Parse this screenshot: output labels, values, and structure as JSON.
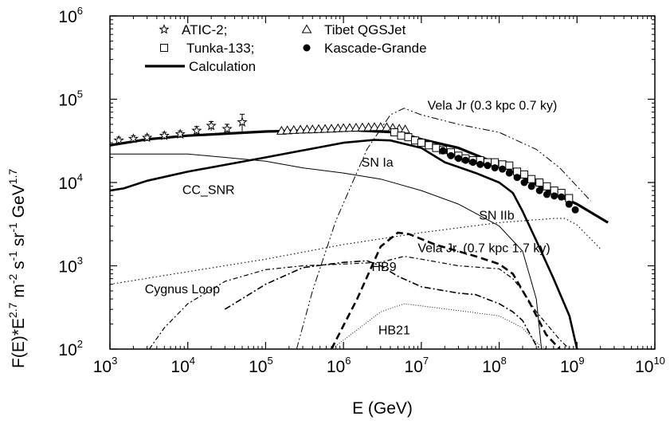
{
  "chart_data": {
    "type": "line",
    "xscale": "log",
    "yscale": "log",
    "xlim": [
      1000,
      10000000000
    ],
    "ylim": [
      100,
      1000000
    ],
    "xlabel": "E (GeV)",
    "ylabel": "F(E)*E^{2.7} m^{-2} s^{-1} sr^{-1} GeV^{1.7}",
    "ylabel_parts": [
      {
        "t": "F(E)*E",
        "sup": false
      },
      {
        "t": "2.7",
        "sup": true
      },
      {
        "t": " m",
        "sup": false
      },
      {
        "t": "-2",
        "sup": true
      },
      {
        "t": " s",
        "sup": false
      },
      {
        "t": "-1",
        "sup": true
      },
      {
        "t": " sr",
        "sup": false
      },
      {
        "t": "-1",
        "sup": true
      },
      {
        "t": " GeV",
        "sup": false
      },
      {
        "t": "1.7",
        "sup": true
      }
    ],
    "grid": false,
    "xticks": [
      {
        "base": "10",
        "exp": "3",
        "value": 1000
      },
      {
        "base": "10",
        "exp": "4",
        "value": 10000
      },
      {
        "base": "10",
        "exp": "5",
        "value": 100000
      },
      {
        "base": "10",
        "exp": "6",
        "value": 1000000
      },
      {
        "base": "10",
        "exp": "7",
        "value": 10000000
      },
      {
        "base": "10",
        "exp": "8",
        "value": 100000000
      },
      {
        "base": "10",
        "exp": "9",
        "value": 1000000000
      },
      {
        "base": "10",
        "exp": "10",
        "value": 10000000000
      }
    ],
    "yticks": [
      {
        "base": "10",
        "exp": "2",
        "value": 100
      },
      {
        "base": "10",
        "exp": "3",
        "value": 1000
      },
      {
        "base": "10",
        "exp": "4",
        "value": 10000
      },
      {
        "base": "10",
        "exp": "5",
        "value": 100000
      },
      {
        "base": "10",
        "exp": "6",
        "value": 1000000
      }
    ],
    "legend": {
      "placement": "top-left",
      "entries": [
        {
          "label": "ATIC-2;",
          "marker": "star"
        },
        {
          "label": "Tibet QGSJet",
          "marker": "triangle"
        },
        {
          "label": "Tunka-133;",
          "marker": "square"
        },
        {
          "label": "Kascade-Grande",
          "marker": "circle"
        },
        {
          "label": "Calculation",
          "marker": "thick-line"
        }
      ]
    },
    "annotations": [
      {
        "text": "Vela Jr (0.3 kpc 0.7 ky)",
        "x": 12000000,
        "y": 75000
      },
      {
        "text": "SN Ia",
        "x": 1700000,
        "y": 15500
      },
      {
        "text": "CC_SNR",
        "x": 8500,
        "y": 7300
      },
      {
        "text": "SN IIb",
        "x": 55000000,
        "y": 3600
      },
      {
        "text": "Vela Jr. (0.7 kpc 1.7 ky)",
        "x": 9000000,
        "y": 1450
      },
      {
        "text": "HB9",
        "x": 2300000,
        "y": 870
      },
      {
        "text": "Cygnus Loop",
        "x": 2800,
        "y": 470
      },
      {
        "text": "HB21",
        "x": 2800000,
        "y": 150
      }
    ],
    "series": [
      {
        "name": "Calculation",
        "role": "total",
        "style": "thick-solid",
        "points": [
          [
            1000,
            28000
          ],
          [
            3000,
            33000
          ],
          [
            10000,
            36500
          ],
          [
            100000,
            41000
          ],
          [
            1000000,
            43000
          ],
          [
            5000000,
            40000
          ],
          [
            10000000,
            33000
          ],
          [
            30000000,
            26000
          ],
          [
            100000000,
            16500
          ],
          [
            300000000,
            9500
          ],
          [
            600000000,
            6800
          ],
          [
            1000000000,
            5500
          ],
          [
            2500000000,
            3300
          ]
        ]
      },
      {
        "name": "SN Ia",
        "role": "component",
        "style": "medium-solid",
        "points": [
          [
            1000,
            8000
          ],
          [
            1500,
            8500
          ],
          [
            3000,
            10500
          ],
          [
            10000,
            13500
          ],
          [
            100000,
            20000
          ],
          [
            1000000,
            30000
          ],
          [
            2500000,
            32500
          ],
          [
            4000000,
            32000
          ],
          [
            10000000,
            26000
          ],
          [
            20000000,
            17500
          ],
          [
            50000000,
            13000
          ],
          [
            100000000,
            10000
          ],
          [
            150000000,
            7500
          ],
          [
            200000000,
            4500
          ],
          [
            300000000,
            2000
          ],
          [
            500000000,
            700
          ],
          [
            800000000,
            250
          ],
          [
            1000000000,
            100
          ]
        ]
      },
      {
        "name": "CC_SNR",
        "role": "component",
        "style": "thin-solid",
        "points": [
          [
            1000,
            22000
          ],
          [
            10000,
            22000
          ],
          [
            30000,
            20000
          ],
          [
            100000,
            18000
          ],
          [
            300000,
            15000
          ],
          [
            1000000,
            13000
          ],
          [
            3000000,
            11000
          ],
          [
            10000000,
            8000
          ],
          [
            30000000,
            5500
          ],
          [
            100000000,
            3000
          ],
          [
            200000000,
            1500
          ],
          [
            300000000,
            400
          ],
          [
            350000000,
            100
          ]
        ]
      },
      {
        "name": "Vela Jr (0.3 kpc 0.7 ky)",
        "role": "component",
        "style": "dash-dot-dot",
        "points": [
          [
            250000,
            100
          ],
          [
            400000,
            500
          ],
          [
            800000,
            3500
          ],
          [
            2000000,
            25000
          ],
          [
            4000000,
            65000
          ],
          [
            6000000,
            78000
          ],
          [
            10000000,
            65000
          ],
          [
            30000000,
            50000
          ],
          [
            100000000,
            40000
          ],
          [
            300000000,
            25000
          ],
          [
            600000000,
            15000
          ],
          [
            1000000000,
            9000
          ],
          [
            1500000000,
            6000
          ]
        ]
      },
      {
        "name": "SN IIb",
        "role": "component",
        "style": "dotted",
        "points": [
          [
            1000,
            600
          ],
          [
            10000,
            850
          ],
          [
            100000,
            1200
          ],
          [
            1000000,
            1800
          ],
          [
            10000000,
            2500
          ],
          [
            100000000,
            3300
          ],
          [
            500000000,
            3700
          ],
          [
            700000000,
            3700
          ],
          [
            1000000000,
            3100
          ],
          [
            1500000000,
            2100
          ],
          [
            2000000000,
            1600
          ]
        ]
      },
      {
        "name": "Vela Jr. (0.7 kpc 1.7 ky)",
        "role": "component",
        "style": "thick-dashed",
        "points": [
          [
            700000,
            100
          ],
          [
            1500000,
            400
          ],
          [
            3000000,
            1700
          ],
          [
            5000000,
            2500
          ],
          [
            7000000,
            2400
          ],
          [
            15000000,
            1800
          ],
          [
            50000000,
            1300
          ],
          [
            100000000,
            1050
          ],
          [
            150000000,
            800
          ],
          [
            250000000,
            350
          ],
          [
            400000000,
            150
          ],
          [
            600000000,
            100
          ]
        ]
      },
      {
        "name": "HB9",
        "role": "component",
        "style": "dash-dot",
        "points": [
          [
            30000,
            300
          ],
          [
            100000,
            600
          ],
          [
            300000,
            950
          ],
          [
            1000000,
            1100
          ],
          [
            2000000,
            1150
          ],
          [
            3000000,
            1000
          ],
          [
            5000000,
            750
          ],
          [
            10000000,
            560
          ],
          [
            30000000,
            470
          ],
          [
            50000000,
            450
          ],
          [
            100000000,
            350
          ],
          [
            150000000,
            280
          ],
          [
            200000000,
            220
          ],
          [
            300000000,
            110
          ],
          [
            350000000,
            100
          ]
        ]
      },
      {
        "name": "Cygnus Loop",
        "role": "component",
        "style": "dash-dot-thin",
        "points": [
          [
            3200,
            100
          ],
          [
            5000,
            180
          ],
          [
            10000,
            350
          ],
          [
            30000,
            650
          ],
          [
            100000,
            900
          ],
          [
            300000,
            1000
          ],
          [
            1000000,
            1050
          ],
          [
            3000000,
            1100
          ],
          [
            6000000,
            1300
          ],
          [
            10000000,
            1200
          ],
          [
            30000000,
            1000
          ],
          [
            100000000,
            920
          ],
          [
            150000000,
            700
          ],
          [
            200000000,
            500
          ],
          [
            300000000,
            280
          ],
          [
            600000000,
            130
          ],
          [
            800000000,
            100
          ]
        ]
      },
      {
        "name": "HB21",
        "role": "component",
        "style": "fine-dotted",
        "points": [
          [
            700000,
            100
          ],
          [
            1500000,
            170
          ],
          [
            3000000,
            280
          ],
          [
            6000000,
            350
          ],
          [
            10000000,
            330
          ],
          [
            30000000,
            290
          ],
          [
            100000000,
            250
          ],
          [
            200000000,
            180
          ],
          [
            300000000,
            120
          ],
          [
            400000000,
            100
          ]
        ]
      },
      {
        "name": "ATIC-2;",
        "role": "data",
        "marker": "star",
        "points": [
          [
            1300,
            32000,
            3000
          ],
          [
            2000,
            33500,
            3000
          ],
          [
            3000,
            34500,
            3000
          ],
          [
            5000,
            36500,
            3500
          ],
          [
            8000,
            38000,
            3500
          ],
          [
            13000,
            42000,
            5000
          ],
          [
            20000,
            48000,
            6000
          ],
          [
            32000,
            44000,
            6000
          ],
          [
            50000,
            53000,
            13000
          ]
        ]
      },
      {
        "name": "Tibet QGSJet",
        "role": "data",
        "marker": "triangle",
        "points": [
          [
            160000,
            41500
          ],
          [
            190000,
            42000
          ],
          [
            230000,
            42500
          ],
          [
            280000,
            42800
          ],
          [
            340000,
            43000
          ],
          [
            400000,
            43200
          ],
          [
            480000,
            43500
          ],
          [
            580000,
            43800
          ],
          [
            700000,
            44000
          ],
          [
            850000,
            44500
          ],
          [
            1000000,
            44800
          ],
          [
            1200000,
            45000
          ],
          [
            1450000,
            45200
          ],
          [
            1750000,
            45500
          ],
          [
            2100000,
            45700
          ],
          [
            2500000,
            46000
          ],
          [
            3000000,
            46000
          ],
          [
            3600000,
            45800
          ],
          [
            4300000,
            45000
          ],
          [
            5200000,
            44000
          ],
          [
            6200000,
            43000
          ]
        ]
      },
      {
        "name": "Tunka-133;",
        "role": "data",
        "marker": "square",
        "points": [
          [
            4500000,
            40000
          ],
          [
            5500000,
            36500
          ],
          [
            6800000,
            35000
          ],
          [
            8300000,
            32000
          ],
          [
            10000000,
            30000
          ],
          [
            12500000,
            28000
          ],
          [
            15500000,
            26000
          ],
          [
            19000000,
            24500
          ],
          [
            24000000,
            23000
          ],
          [
            30000000,
            21000
          ],
          [
            37000000,
            19500
          ],
          [
            46000000,
            18500
          ],
          [
            57000000,
            18500
          ],
          [
            71000000,
            17500
          ],
          [
            88000000,
            17500
          ],
          [
            110000000,
            16500
          ],
          [
            135000000,
            16000
          ],
          [
            170000000,
            13500
          ],
          [
            210000000,
            12500
          ],
          [
            260000000,
            11000
          ],
          [
            330000000,
            10000
          ],
          [
            410000000,
            9000
          ],
          [
            510000000,
            8000
          ],
          [
            630000000,
            7500
          ],
          [
            790000000,
            6500
          ]
        ]
      },
      {
        "name": "Kascade-Grande",
        "role": "data",
        "marker": "circle",
        "points": [
          [
            19000000,
            24000
          ],
          [
            24000000,
            21000
          ],
          [
            30000000,
            19500
          ],
          [
            37000000,
            18500
          ],
          [
            46000000,
            17500
          ],
          [
            57000000,
            16500
          ],
          [
            71000000,
            16000
          ],
          [
            88000000,
            15000
          ],
          [
            110000000,
            14500
          ],
          [
            135000000,
            13000
          ],
          [
            170000000,
            11500
          ],
          [
            210000000,
            10000
          ],
          [
            260000000,
            9000
          ],
          [
            330000000,
            8000
          ],
          [
            410000000,
            7200
          ],
          [
            510000000,
            6900
          ],
          [
            630000000,
            6700
          ],
          [
            790000000,
            5500
          ],
          [
            950000000,
            4700
          ]
        ]
      }
    ]
  }
}
